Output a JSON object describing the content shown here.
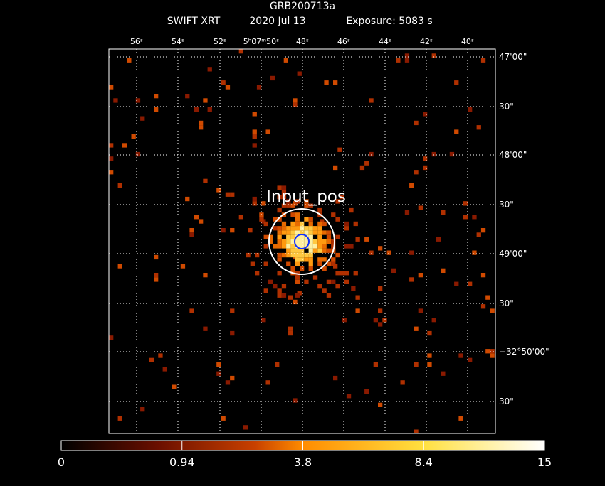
{
  "header": {
    "title": "GRB200713a",
    "instrument": "SWIFT XRT",
    "date": "2020 Jul 13",
    "exposure": "Exposure: 5083 s"
  },
  "ra_labels": [
    "56ˢ",
    "54ˢ",
    "52ˢ",
    "5ʰ07ᵐ50ˢ",
    "48ˢ",
    "46ˢ",
    "44ˢ",
    "42ˢ",
    "40ˢ"
  ],
  "dec_labels": [
    "47'00\"",
    "30\"",
    "48'00\"",
    "30\"",
    "49'00\"",
    "30\"",
    "−32°50'00\"",
    "30\""
  ],
  "source_label": "Input_pos",
  "colorbar": {
    "labels": [
      0,
      0.94,
      3.8,
      8.4,
      15
    ]
  }
}
